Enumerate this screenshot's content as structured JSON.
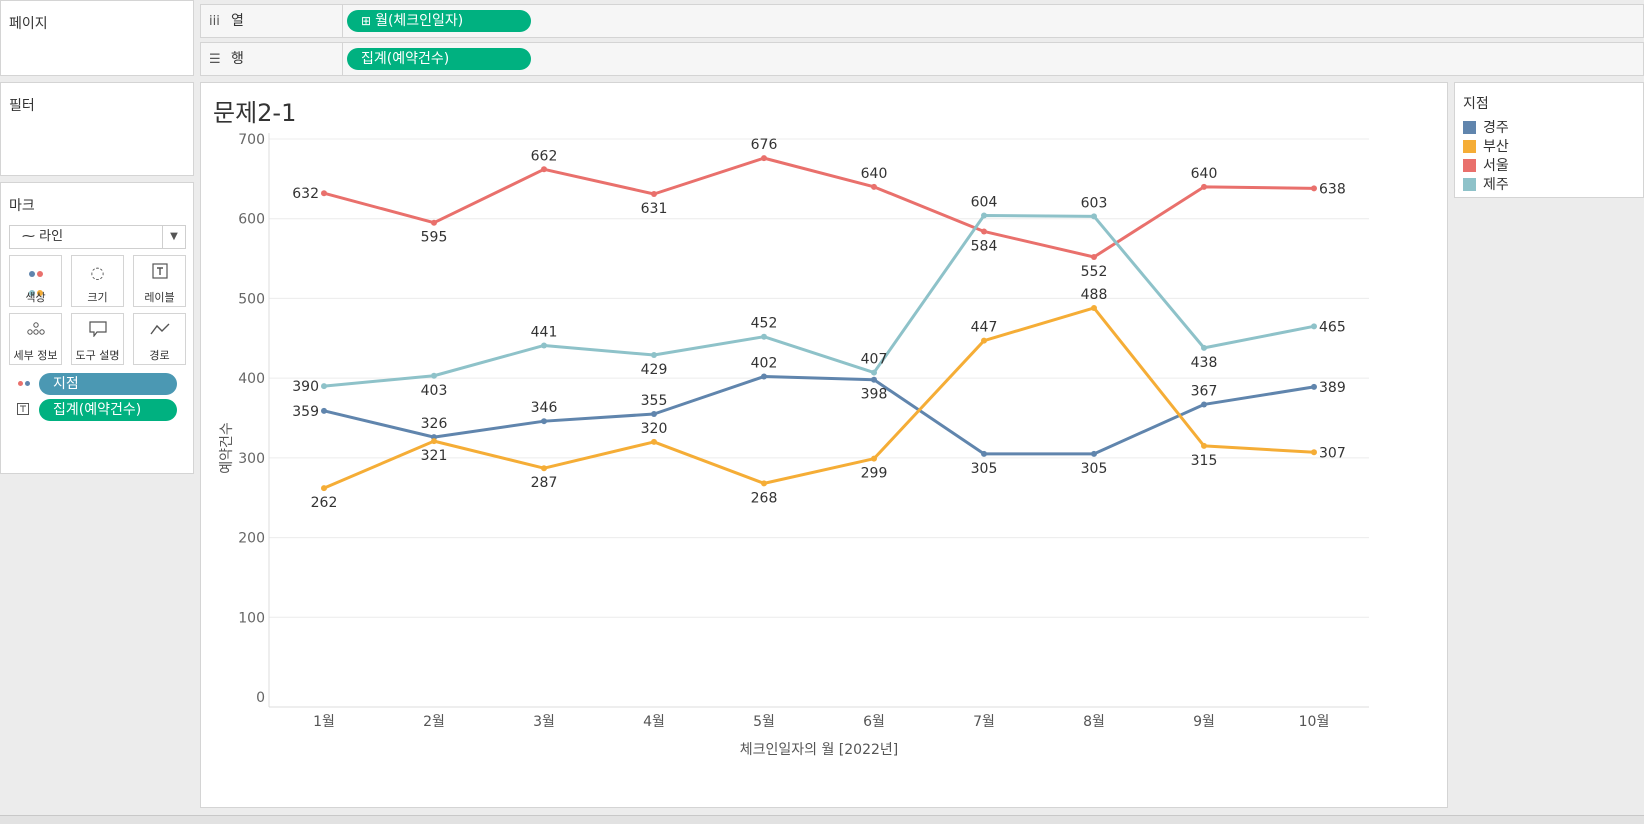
{
  "shelves": {
    "columns_label": "열",
    "columns_icon": "iii",
    "columns_pill": "월(체크인일자)",
    "columns_pill_icon": "⊞",
    "rows_label": "행",
    "rows_icon": "☰",
    "rows_pill": "집계(예약건수)"
  },
  "panels": {
    "pages": "페이지",
    "filters": "필터",
    "marks": "마크"
  },
  "marks": {
    "type": "라인",
    "buttons": {
      "color": "색상",
      "size": "크기",
      "label": "레이블",
      "detail": "세부 정보",
      "tooltip": "도구 설명",
      "path": "경로"
    },
    "pill_branch": "지점",
    "pill_count": "집계(예약건수)"
  },
  "legend": {
    "title": "지점",
    "items": [
      {
        "label": "경주",
        "color": "#6085ad"
      },
      {
        "label": "부산",
        "color": "#f5ad36"
      },
      {
        "label": "서울",
        "color": "#e9706c"
      },
      {
        "label": "제주",
        "color": "#8ec2c9"
      }
    ]
  },
  "chart_data": {
    "type": "line",
    "title": "문제2-1",
    "xlabel": "체크인일자의 월 [2022년]",
    "ylabel": "예약건수",
    "categories": [
      "1월",
      "2월",
      "3월",
      "4월",
      "5월",
      "6월",
      "7월",
      "8월",
      "9월",
      "10월"
    ],
    "ylim": [
      0,
      700
    ],
    "yticks": [
      0,
      100,
      200,
      300,
      400,
      500,
      600,
      700
    ],
    "grid": true,
    "legend_position": "right",
    "series": [
      {
        "name": "경주",
        "color": "#6085ad",
        "values": [
          359,
          326,
          346,
          355,
          402,
          398,
          305,
          305,
          367,
          389
        ],
        "label_pos": [
          "left",
          "above",
          "above",
          "above",
          "above",
          "below",
          "below",
          "below",
          "above",
          "right"
        ]
      },
      {
        "name": "부산",
        "color": "#f5ad36",
        "values": [
          262,
          321,
          287,
          320,
          268,
          299,
          447,
          488,
          315,
          307
        ],
        "label_pos": [
          "below",
          "below",
          "below",
          "above",
          "below",
          "below",
          "above",
          "above",
          "below",
          "right"
        ]
      },
      {
        "name": "서울",
        "color": "#e9706c",
        "values": [
          632,
          595,
          662,
          631,
          676,
          640,
          584,
          552,
          640,
          638
        ],
        "label_pos": [
          "left",
          "below",
          "above",
          "below",
          "above",
          "above",
          "below",
          "below",
          "above",
          "right"
        ]
      },
      {
        "name": "제주",
        "color": "#8ec2c9",
        "values": [
          390,
          403,
          441,
          429,
          452,
          407,
          604,
          603,
          438,
          465
        ],
        "label_pos": [
          "left",
          "below",
          "above",
          "below",
          "above",
          "above",
          "above",
          "above",
          "below",
          "right"
        ]
      }
    ]
  }
}
